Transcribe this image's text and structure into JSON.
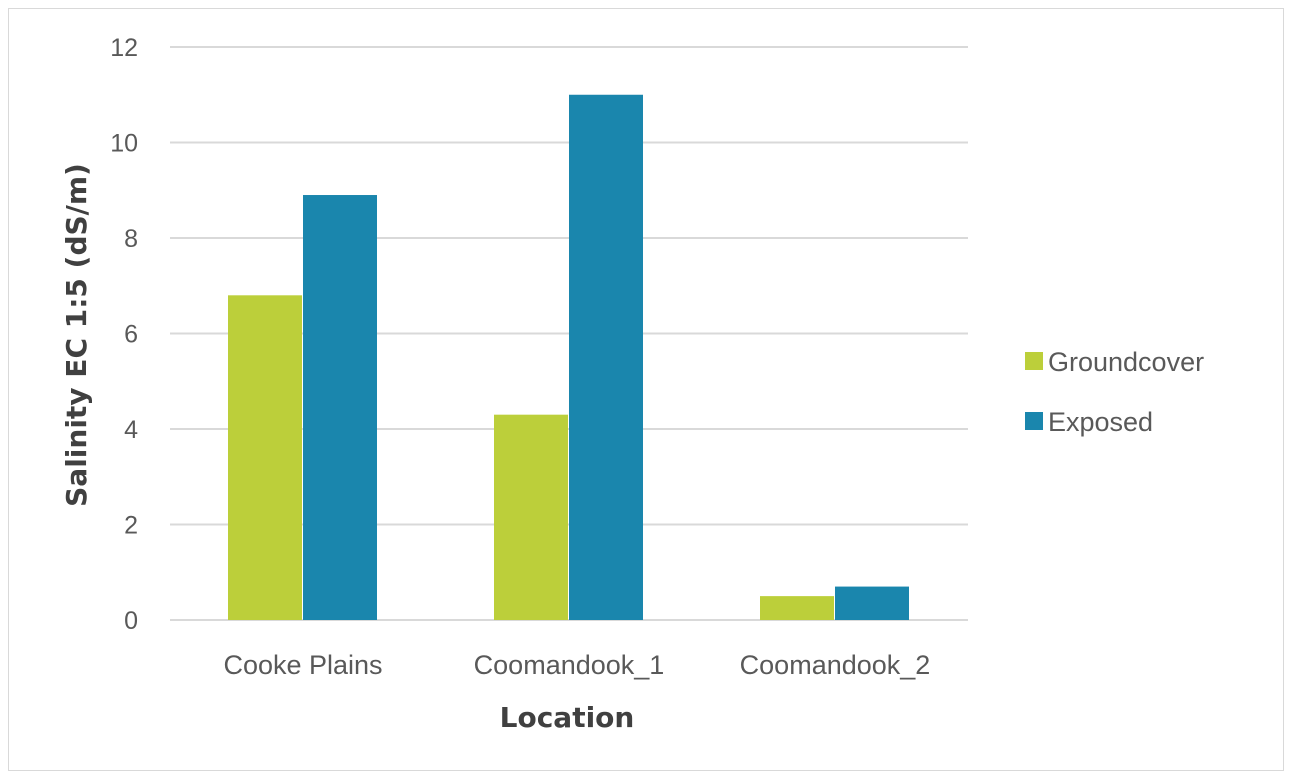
{
  "chart_data": {
    "type": "bar",
    "categories": [
      "Cooke Plains",
      "Coomandook_1",
      "Coomandook_2"
    ],
    "series": [
      {
        "name": "Groundcover",
        "color": "#bccf3a",
        "values": [
          6.8,
          4.3,
          0.5
        ]
      },
      {
        "name": "Exposed",
        "color": "#1a86ad",
        "values": [
          8.9,
          11.0,
          0.7
        ]
      }
    ],
    "xlabel": "Location",
    "ylabel": "Salinity EC 1:5 (dS/m)",
    "ylim": [
      0,
      12
    ],
    "yticks": [
      "0",
      "2",
      "4",
      "6",
      "8",
      "10",
      "12"
    ],
    "grid": true,
    "legend_position": "right"
  }
}
